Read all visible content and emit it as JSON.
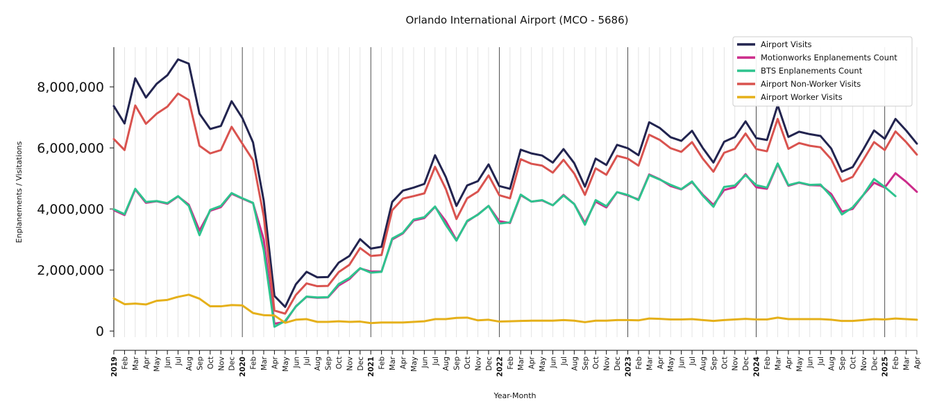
{
  "chart_data": {
    "type": "line",
    "title": "Orlando International Airport (MCO - 5686)",
    "xlabel": "Year-Month",
    "ylabel": "Enplanements / Visitations",
    "ylim": [
      -200000,
      9300000
    ],
    "yticks": [
      0,
      2000000,
      4000000,
      6000000,
      8000000
    ],
    "ytick_labels": [
      "0",
      "2,000,000",
      "4,000,000",
      "6,000,000",
      "8,000,000"
    ],
    "grid": "vertical monthly gridlines, darker line at each year start",
    "legend_position": "top-right",
    "x_tick_labels": [
      "2019",
      "Feb",
      "Mar",
      "Apr",
      "May",
      "Jun",
      "Jul",
      "Aug",
      "Sep",
      "Oct",
      "Nov",
      "Dec",
      "2020",
      "Feb",
      "Mar",
      "Apr",
      "May",
      "Jun",
      "Jul",
      "Aug",
      "Sep",
      "Oct",
      "Nov",
      "Dec",
      "2021",
      "Feb",
      "Mar",
      "Apr",
      "May",
      "Jun",
      "Jul",
      "Aug",
      "Sep",
      "Oct",
      "Nov",
      "Dec",
      "2022",
      "Feb",
      "Mar",
      "Apr",
      "May",
      "Jun",
      "Jul",
      "Aug",
      "Sep",
      "Oct",
      "Nov",
      "Dec",
      "2023",
      "Feb",
      "Mar",
      "Apr",
      "May",
      "Jun",
      "Jul",
      "Aug",
      "Sep",
      "Oct",
      "Nov",
      "Dec",
      "2024",
      "Feb",
      "Mar",
      "Apr",
      "May",
      "Jun",
      "Jul",
      "Aug",
      "Sep",
      "Oct",
      "Nov",
      "Dec",
      "2025",
      "Feb",
      "Mar",
      "Apr"
    ],
    "series": [
      {
        "name": "Airport Visits",
        "color": "#22244f",
        "values": [
          7370000,
          6800000,
          8280000,
          7650000,
          8100000,
          8380000,
          8900000,
          8760000,
          7120000,
          6620000,
          6720000,
          7530000,
          6980000,
          6180000,
          4270000,
          1150000,
          790000,
          1530000,
          1940000,
          1760000,
          1770000,
          2240000,
          2460000,
          3010000,
          2700000,
          2760000,
          4230000,
          4600000,
          4700000,
          4820000,
          5760000,
          5050000,
          4100000,
          4770000,
          4910000,
          5460000,
          4750000,
          4660000,
          5940000,
          5820000,
          5750000,
          5520000,
          5960000,
          5500000,
          4730000,
          5650000,
          5440000,
          6100000,
          5990000,
          5760000,
          6840000,
          6650000,
          6350000,
          6230000,
          6560000,
          6000000,
          5520000,
          6200000,
          6360000,
          6870000,
          6320000,
          6260000,
          7400000,
          6360000,
          6530000,
          6450000,
          6390000,
          5980000,
          5220000,
          5370000,
          5950000,
          6570000,
          6300000,
          6950000,
          6570000,
          6140000
        ]
      },
      {
        "name": "Motionworks Enplanements Count",
        "color": "#cc2b8a",
        "values": [
          3960000,
          3800000,
          4640000,
          4200000,
          4250000,
          4170000,
          4410000,
          4140000,
          3290000,
          3940000,
          4060000,
          4500000,
          4340000,
          4190000,
          3000000,
          240000,
          300000,
          810000,
          1120000,
          1090000,
          1100000,
          1490000,
          1700000,
          2050000,
          1950000,
          1950000,
          3000000,
          3200000,
          3620000,
          3700000,
          4070000,
          3600000,
          2980000,
          3590000,
          3820000,
          4100000,
          3600000,
          3540000,
          4450000,
          4240000,
          4280000,
          4120000,
          4460000,
          4160000,
          3540000,
          4240000,
          4050000,
          4550000,
          4440000,
          4310000,
          5130000,
          4970000,
          4750000,
          4640000,
          4880000,
          4470000,
          4130000,
          4620000,
          4710000,
          5140000,
          4710000,
          4660000,
          5470000,
          4760000,
          4860000,
          4780000,
          4770000,
          4490000,
          3910000,
          4000000,
          4460000,
          4860000,
          4700000,
          5170000,
          4890000,
          4560000
        ]
      },
      {
        "name": "BTS Enplanements Count",
        "color": "#2ec38e",
        "values": [
          3990000,
          3830000,
          4660000,
          4230000,
          4260000,
          4190000,
          4420000,
          4100000,
          3140000,
          3970000,
          4100000,
          4520000,
          4350000,
          4200000,
          2650000,
          140000,
          330000,
          800000,
          1130000,
          1100000,
          1110000,
          1540000,
          1740000,
          2060000,
          1910000,
          1940000,
          3030000,
          3220000,
          3650000,
          3730000,
          4080000,
          3480000,
          2960000,
          3610000,
          3810000,
          4100000,
          3520000,
          3560000,
          4470000,
          4240000,
          4290000,
          4120000,
          4440000,
          4160000,
          3480000,
          4290000,
          4090000,
          4550000,
          4460000,
          4290000,
          5110000,
          4960000,
          4790000,
          4650000,
          4900000,
          4440000,
          4070000,
          4720000,
          4770000,
          5110000,
          4780000,
          4700000,
          5490000,
          4780000,
          4870000,
          4790000,
          4800000,
          4410000,
          3820000,
          4050000,
          4460000,
          4980000,
          4720000,
          4420000,
          null,
          null
        ]
      },
      {
        "name": "Airport Non-Worker Visits",
        "color": "#d9534f",
        "values": [
          6290000,
          5930000,
          7390000,
          6790000,
          7120000,
          7350000,
          7780000,
          7570000,
          6070000,
          5820000,
          5930000,
          6690000,
          6140000,
          5600000,
          3760000,
          670000,
          570000,
          1180000,
          1560000,
          1470000,
          1480000,
          1930000,
          2170000,
          2720000,
          2460000,
          2490000,
          3960000,
          4340000,
          4420000,
          4510000,
          5380000,
          4660000,
          3670000,
          4350000,
          4570000,
          5100000,
          4450000,
          4350000,
          5630000,
          5480000,
          5420000,
          5190000,
          5610000,
          5160000,
          4460000,
          5330000,
          5120000,
          5740000,
          5650000,
          5420000,
          6430000,
          6260000,
          5990000,
          5870000,
          6190000,
          5650000,
          5220000,
          5840000,
          5970000,
          6470000,
          5960000,
          5890000,
          6950000,
          5970000,
          6160000,
          6070000,
          6020000,
          5630000,
          4900000,
          5050000,
          5610000,
          6190000,
          5930000,
          6540000,
          6190000,
          5780000
        ]
      },
      {
        "name": "Airport Worker Visits",
        "color": "#e5b01a",
        "values": [
          1070000,
          880000,
          900000,
          870000,
          990000,
          1020000,
          1120000,
          1190000,
          1060000,
          810000,
          810000,
          850000,
          840000,
          590000,
          520000,
          510000,
          270000,
          370000,
          390000,
          300000,
          300000,
          320000,
          300000,
          310000,
          260000,
          280000,
          280000,
          280000,
          300000,
          320000,
          390000,
          390000,
          430000,
          440000,
          350000,
          370000,
          310000,
          320000,
          330000,
          340000,
          340000,
          340000,
          360000,
          340000,
          290000,
          340000,
          340000,
          360000,
          360000,
          350000,
          410000,
          400000,
          380000,
          380000,
          390000,
          360000,
          330000,
          360000,
          380000,
          400000,
          380000,
          380000,
          440000,
          390000,
          390000,
          390000,
          390000,
          370000,
          330000,
          330000,
          360000,
          390000,
          380000,
          410000,
          390000,
          370000
        ]
      }
    ]
  }
}
